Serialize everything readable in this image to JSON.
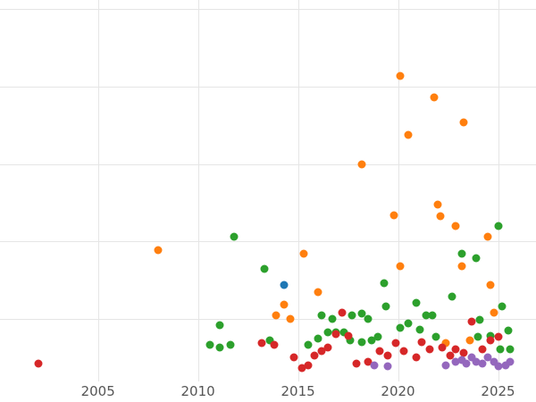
{
  "chart_data": {
    "type": "scatter",
    "title": "",
    "xlabel": "",
    "ylabel": "",
    "grid": true,
    "legend": "none",
    "axes": {
      "x": {
        "domain": [
          2000.1,
          2026.9
        ],
        "ticks": [
          2005,
          2010,
          2015,
          2020,
          2025
        ],
        "tick_labels": [
          "2005",
          "2010",
          "2015",
          "2020",
          "2025"
        ]
      },
      "y": {
        "domain": [
          -0.4,
          25.6
        ],
        "gridlines": [
          5,
          10,
          15,
          20,
          25
        ],
        "tick_labels_visible": false
      }
    },
    "colors": {
      "blue": "#1f77b4",
      "orange": "#ff7f0e",
      "green": "#2ca02c",
      "red": "#d62728",
      "purple": "#9467bd",
      "gridline": "#e5e5e5",
      "tick_text": "#555555"
    },
    "series": [
      {
        "name": "blue",
        "color": "#1f77b4",
        "points": [
          [
            2014.3,
            7.2
          ]
        ]
      },
      {
        "name": "orange",
        "color": "#ff7f0e",
        "points": [
          [
            2008.0,
            9.4
          ],
          [
            2020.1,
            20.7
          ],
          [
            2021.8,
            19.3
          ],
          [
            2023.3,
            17.7
          ],
          [
            2020.5,
            16.9
          ],
          [
            2018.2,
            15.0
          ],
          [
            2019.8,
            11.7
          ],
          [
            2022.0,
            12.4
          ],
          [
            2022.1,
            11.6
          ],
          [
            2022.9,
            11.0
          ],
          [
            2024.5,
            10.3
          ],
          [
            2015.3,
            9.2
          ],
          [
            2020.1,
            8.4
          ],
          [
            2023.2,
            8.4
          ],
          [
            2016.0,
            6.7
          ],
          [
            2024.6,
            7.2
          ],
          [
            2013.9,
            5.2
          ],
          [
            2014.3,
            5.9
          ],
          [
            2014.6,
            5.0
          ],
          [
            2022.4,
            3.4
          ],
          [
            2023.6,
            3.6
          ],
          [
            2024.8,
            5.4
          ]
        ]
      },
      {
        "name": "green",
        "color": "#2ca02c",
        "points": [
          [
            2011.8,
            10.3
          ],
          [
            2013.3,
            8.2
          ],
          [
            2019.3,
            7.3
          ],
          [
            2023.2,
            9.2
          ],
          [
            2025.0,
            11.0
          ],
          [
            2023.9,
            8.9
          ],
          [
            2019.4,
            5.8
          ],
          [
            2020.9,
            6.0
          ],
          [
            2022.7,
            6.4
          ],
          [
            2021.4,
            5.2
          ],
          [
            2021.7,
            5.2
          ],
          [
            2025.2,
            5.8
          ],
          [
            2025.5,
            4.2
          ],
          [
            2016.2,
            5.2
          ],
          [
            2016.7,
            5.0
          ],
          [
            2017.7,
            5.2
          ],
          [
            2018.2,
            5.3
          ],
          [
            2018.5,
            5.0
          ],
          [
            2017.6,
            3.6
          ],
          [
            2018.2,
            3.5
          ],
          [
            2018.7,
            3.6
          ],
          [
            2011.1,
            4.6
          ],
          [
            2010.6,
            3.3
          ],
          [
            2011.1,
            3.1
          ],
          [
            2011.6,
            3.3
          ],
          [
            2013.6,
            3.6
          ],
          [
            2015.5,
            3.3
          ],
          [
            2016.0,
            3.7
          ],
          [
            2016.5,
            4.1
          ],
          [
            2016.9,
            4.1
          ],
          [
            2017.3,
            4.1
          ],
          [
            2019.0,
            3.8
          ],
          [
            2020.1,
            4.4
          ],
          [
            2020.5,
            4.7
          ],
          [
            2021.1,
            4.3
          ],
          [
            2021.9,
            3.8
          ],
          [
            2024.1,
            4.9
          ],
          [
            2024.6,
            3.9
          ],
          [
            2024.0,
            3.8
          ],
          [
            2025.1,
            3.0
          ],
          [
            2025.6,
            3.0
          ]
        ]
      },
      {
        "name": "red",
        "color": "#d62728",
        "points": [
          [
            2002.0,
            2.1
          ],
          [
            2013.2,
            3.4
          ],
          [
            2013.8,
            3.3
          ],
          [
            2014.8,
            2.5
          ],
          [
            2015.2,
            1.8
          ],
          [
            2015.5,
            2.0
          ],
          [
            2015.8,
            2.6
          ],
          [
            2016.2,
            2.9
          ],
          [
            2016.5,
            3.1
          ],
          [
            2016.9,
            4.0
          ],
          [
            2017.2,
            5.4
          ],
          [
            2017.5,
            3.9
          ],
          [
            2017.9,
            2.1
          ],
          [
            2018.5,
            2.2
          ],
          [
            2019.1,
            2.9
          ],
          [
            2019.5,
            2.6
          ],
          [
            2019.9,
            3.4
          ],
          [
            2020.3,
            2.9
          ],
          [
            2020.9,
            2.5
          ],
          [
            2021.2,
            3.5
          ],
          [
            2021.6,
            3.0
          ],
          [
            2022.2,
            3.1
          ],
          [
            2022.6,
            2.6
          ],
          [
            2022.9,
            3.0
          ],
          [
            2023.3,
            2.8
          ],
          [
            2023.7,
            4.8
          ],
          [
            2024.2,
            3.0
          ],
          [
            2024.6,
            3.6
          ],
          [
            2025.0,
            3.8
          ]
        ]
      },
      {
        "name": "purple",
        "color": "#9467bd",
        "points": [
          [
            2018.8,
            2.0
          ],
          [
            2019.5,
            1.9
          ],
          [
            2022.4,
            2.0
          ],
          [
            2022.9,
            2.2
          ],
          [
            2023.2,
            2.3
          ],
          [
            2023.4,
            2.1
          ],
          [
            2023.7,
            2.5
          ],
          [
            2023.9,
            2.2
          ],
          [
            2024.2,
            2.1
          ],
          [
            2024.5,
            2.5
          ],
          [
            2024.8,
            2.2
          ],
          [
            2025.0,
            1.9
          ],
          [
            2025.4,
            2.0
          ],
          [
            2025.6,
            2.2
          ]
        ]
      }
    ]
  }
}
